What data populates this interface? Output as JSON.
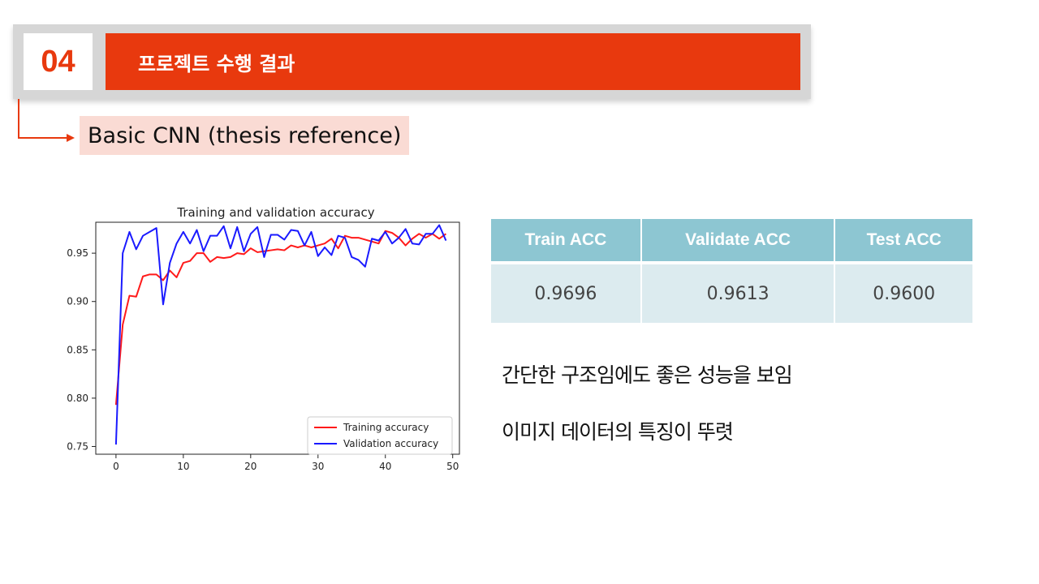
{
  "header": {
    "number": "04",
    "title": "프로젝트 수행 결과"
  },
  "subtitle": "Basic CNN (thesis reference)",
  "chart_data": {
    "type": "line",
    "title": "Training and validation accuracy",
    "xlabel": "",
    "ylabel": "",
    "xlim": [
      -3,
      51
    ],
    "ylim": [
      0.742,
      0.982
    ],
    "xticks": [
      0,
      10,
      20,
      30,
      40,
      50
    ],
    "yticks": [
      0.75,
      0.8,
      0.85,
      0.9,
      0.95
    ],
    "ytick_labels": [
      "0.75",
      "0.80",
      "0.85",
      "0.90",
      "0.95"
    ],
    "legend_position": "lower-right",
    "x": [
      0,
      1,
      2,
      3,
      4,
      5,
      6,
      7,
      8,
      9,
      10,
      11,
      12,
      13,
      14,
      15,
      16,
      17,
      18,
      19,
      20,
      21,
      22,
      23,
      24,
      25,
      26,
      27,
      28,
      29,
      30,
      31,
      32,
      33,
      34,
      35,
      36,
      37,
      38,
      39,
      40,
      41,
      42,
      43,
      44,
      45,
      46,
      47,
      48,
      49
    ],
    "series": [
      {
        "name": "Training accuracy",
        "color": "#ff1a1a",
        "values": [
          0.793,
          0.876,
          0.906,
          0.905,
          0.926,
          0.928,
          0.928,
          0.922,
          0.932,
          0.925,
          0.94,
          0.942,
          0.95,
          0.95,
          0.941,
          0.946,
          0.945,
          0.946,
          0.95,
          0.949,
          0.955,
          0.951,
          0.952,
          0.953,
          0.954,
          0.953,
          0.958,
          0.956,
          0.958,
          0.956,
          0.958,
          0.96,
          0.965,
          0.955,
          0.968,
          0.966,
          0.966,
          0.964,
          0.962,
          0.96,
          0.973,
          0.971,
          0.966,
          0.958,
          0.965,
          0.97,
          0.966,
          0.97,
          0.965,
          0.97
        ]
      },
      {
        "name": "Validation accuracy",
        "color": "#1a1aff",
        "values": [
          0.752,
          0.95,
          0.972,
          0.954,
          0.968,
          0.972,
          0.976,
          0.897,
          0.94,
          0.96,
          0.972,
          0.96,
          0.974,
          0.952,
          0.968,
          0.968,
          0.978,
          0.955,
          0.977,
          0.952,
          0.97,
          0.977,
          0.946,
          0.969,
          0.969,
          0.964,
          0.974,
          0.973,
          0.958,
          0.972,
          0.947,
          0.956,
          0.948,
          0.968,
          0.966,
          0.946,
          0.943,
          0.936,
          0.965,
          0.963,
          0.972,
          0.96,
          0.966,
          0.975,
          0.96,
          0.959,
          0.97,
          0.97,
          0.979,
          0.963
        ]
      }
    ]
  },
  "table": {
    "headers": [
      "Train ACC",
      "Validate ACC",
      "Test ACC"
    ],
    "values": [
      "0.9696",
      "0.9613",
      "0.9600"
    ]
  },
  "notes": [
    "간단한 구조임에도 좋은 성능을 보임",
    "이미지 데이터의 특징이 뚜렷"
  ]
}
